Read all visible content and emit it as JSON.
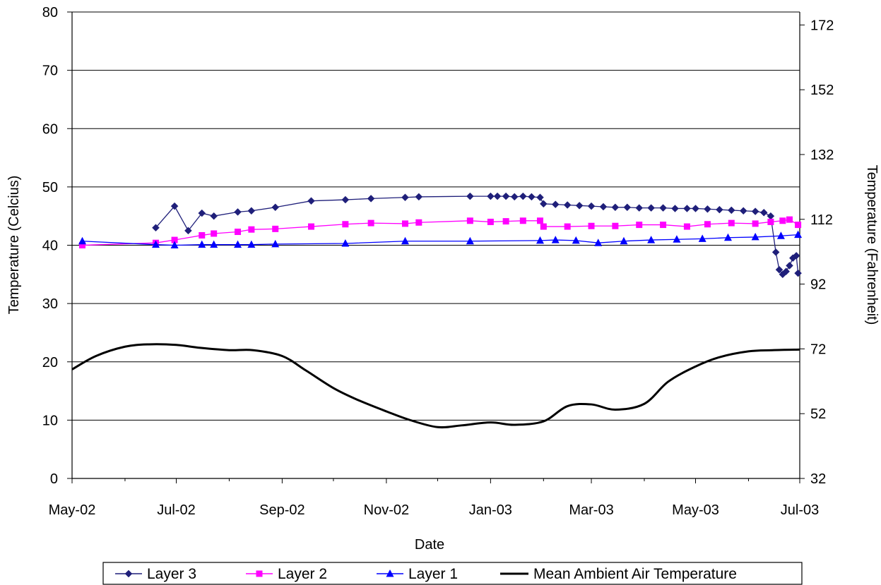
{
  "chart_data": {
    "type": "line",
    "xlabel": "Date",
    "ylabel": "Temperature (Celcius)",
    "y2label": "Temperature (Fahrenheit)",
    "x_range": [
      "2002-05-01",
      "2003-07-01"
    ],
    "x_ticks": [
      {
        "date": "2002-05-01",
        "label": "May-02"
      },
      {
        "date": "2002-07-01",
        "label": "Jul-02"
      },
      {
        "date": "2002-09-01",
        "label": "Sep-02"
      },
      {
        "date": "2002-11-01",
        "label": "Nov-02"
      },
      {
        "date": "2003-01-01",
        "label": "Jan-03"
      },
      {
        "date": "2003-03-01",
        "label": "Mar-03"
      },
      {
        "date": "2003-05-01",
        "label": "May-03"
      },
      {
        "date": "2003-07-01",
        "label": "Jul-03"
      }
    ],
    "ylim": [
      0,
      80
    ],
    "y_ticks": [
      0,
      10,
      20,
      30,
      40,
      50,
      60,
      70,
      80
    ],
    "y2lim": [
      32,
      176
    ],
    "y2_ticks": [
      32,
      52,
      72,
      92,
      112,
      132,
      152,
      172
    ],
    "grid": "horizontal",
    "legend_position": "bottom",
    "series": [
      {
        "name": "Layer 3",
        "color": "#1F1F7A",
        "marker": "diamond",
        "points": [
          [
            "2002-06-19",
            43.0
          ],
          [
            "2002-06-30",
            46.7
          ],
          [
            "2002-07-08",
            42.5
          ],
          [
            "2002-07-16",
            45.5
          ],
          [
            "2002-07-23",
            45.0
          ],
          [
            "2002-08-06",
            45.7
          ],
          [
            "2002-08-14",
            45.9
          ],
          [
            "2002-08-28",
            46.5
          ],
          [
            "2002-09-18",
            47.6
          ],
          [
            "2002-10-08",
            47.8
          ],
          [
            "2002-10-23",
            48.0
          ],
          [
            "2002-11-12",
            48.2
          ],
          [
            "2002-11-20",
            48.3
          ],
          [
            "2002-12-20",
            48.4
          ],
          [
            "2003-01-01",
            48.4
          ],
          [
            "2003-01-05",
            48.4
          ],
          [
            "2003-01-10",
            48.4
          ],
          [
            "2003-01-15",
            48.3
          ],
          [
            "2003-01-20",
            48.4
          ],
          [
            "2003-01-25",
            48.3
          ],
          [
            "2003-01-30",
            48.2
          ],
          [
            "2003-02-01",
            47.1
          ],
          [
            "2003-02-08",
            47.0
          ],
          [
            "2003-02-15",
            46.9
          ],
          [
            "2003-02-22",
            46.8
          ],
          [
            "2003-03-01",
            46.7
          ],
          [
            "2003-03-08",
            46.6
          ],
          [
            "2003-03-15",
            46.5
          ],
          [
            "2003-03-22",
            46.5
          ],
          [
            "2003-03-29",
            46.4
          ],
          [
            "2003-04-05",
            46.4
          ],
          [
            "2003-04-12",
            46.4
          ],
          [
            "2003-04-19",
            46.3
          ],
          [
            "2003-04-26",
            46.3
          ],
          [
            "2003-05-01",
            46.3
          ],
          [
            "2003-05-08",
            46.2
          ],
          [
            "2003-05-15",
            46.1
          ],
          [
            "2003-05-22",
            46.0
          ],
          [
            "2003-05-29",
            45.9
          ],
          [
            "2003-06-05",
            45.8
          ],
          [
            "2003-06-10",
            45.6
          ],
          [
            "2003-06-14",
            45.0
          ],
          [
            "2003-06-17",
            38.8
          ],
          [
            "2003-06-19",
            35.8
          ],
          [
            "2003-06-21",
            35.0
          ],
          [
            "2003-06-23",
            35.5
          ],
          [
            "2003-06-25",
            36.5
          ],
          [
            "2003-06-27",
            37.8
          ],
          [
            "2003-06-29",
            38.2
          ],
          [
            "2003-06-30",
            35.2
          ]
        ]
      },
      {
        "name": "Layer 2",
        "color": "#FF00FF",
        "marker": "square",
        "points": [
          [
            "2002-05-07",
            40.0
          ],
          [
            "2002-06-19",
            40.4
          ],
          [
            "2002-06-30",
            40.9
          ],
          [
            "2002-07-16",
            41.7
          ],
          [
            "2002-07-23",
            42.0
          ],
          [
            "2002-08-06",
            42.3
          ],
          [
            "2002-08-14",
            42.7
          ],
          [
            "2002-08-28",
            42.8
          ],
          [
            "2002-09-18",
            43.2
          ],
          [
            "2002-10-08",
            43.6
          ],
          [
            "2002-10-23",
            43.8
          ],
          [
            "2002-11-12",
            43.7
          ],
          [
            "2002-11-20",
            43.9
          ],
          [
            "2002-12-20",
            44.2
          ],
          [
            "2003-01-01",
            44.0
          ],
          [
            "2003-01-10",
            44.1
          ],
          [
            "2003-01-20",
            44.2
          ],
          [
            "2003-01-30",
            44.2
          ],
          [
            "2003-02-01",
            43.2
          ],
          [
            "2003-02-15",
            43.2
          ],
          [
            "2003-03-01",
            43.3
          ],
          [
            "2003-03-15",
            43.3
          ],
          [
            "2003-03-29",
            43.5
          ],
          [
            "2003-04-12",
            43.5
          ],
          [
            "2003-04-26",
            43.2
          ],
          [
            "2003-05-08",
            43.6
          ],
          [
            "2003-05-22",
            43.8
          ],
          [
            "2003-06-05",
            43.7
          ],
          [
            "2003-06-14",
            44.0
          ],
          [
            "2003-06-21",
            44.2
          ],
          [
            "2003-06-25",
            44.4
          ],
          [
            "2003-06-30",
            43.5
          ]
        ]
      },
      {
        "name": "Layer 1",
        "color": "#0000FF",
        "marker": "triangle",
        "points": [
          [
            "2002-05-07",
            40.7
          ],
          [
            "2002-06-19",
            40.1
          ],
          [
            "2002-06-30",
            40.0
          ],
          [
            "2002-07-16",
            40.1
          ],
          [
            "2002-07-23",
            40.1
          ],
          [
            "2002-08-06",
            40.1
          ],
          [
            "2002-08-14",
            40.1
          ],
          [
            "2002-08-28",
            40.2
          ],
          [
            "2002-10-08",
            40.3
          ],
          [
            "2002-11-12",
            40.7
          ],
          [
            "2002-12-20",
            40.7
          ],
          [
            "2003-01-30",
            40.8
          ],
          [
            "2003-02-08",
            40.9
          ],
          [
            "2003-02-20",
            40.8
          ],
          [
            "2003-03-05",
            40.4
          ],
          [
            "2003-03-20",
            40.7
          ],
          [
            "2003-04-05",
            40.9
          ],
          [
            "2003-04-20",
            41.0
          ],
          [
            "2003-05-05",
            41.1
          ],
          [
            "2003-05-20",
            41.3
          ],
          [
            "2003-06-05",
            41.4
          ],
          [
            "2003-06-20",
            41.6
          ],
          [
            "2003-06-30",
            41.8
          ]
        ]
      },
      {
        "name": "Mean Ambient Air Temperature",
        "color": "#000000",
        "marker": "none",
        "points": [
          [
            "2002-05-01",
            18.7
          ],
          [
            "2002-05-15",
            21.0
          ],
          [
            "2002-06-01",
            22.6
          ],
          [
            "2002-06-15",
            23.0
          ],
          [
            "2002-07-01",
            22.9
          ],
          [
            "2002-07-15",
            22.4
          ],
          [
            "2002-08-01",
            22.0
          ],
          [
            "2002-08-15",
            22.0
          ],
          [
            "2002-09-01",
            21.0
          ],
          [
            "2002-09-15",
            18.5
          ],
          [
            "2002-10-01",
            15.5
          ],
          [
            "2002-10-15",
            13.5
          ],
          [
            "2002-11-01",
            11.5
          ],
          [
            "2002-11-15",
            10.0
          ],
          [
            "2002-12-01",
            8.8
          ],
          [
            "2002-12-15",
            9.1
          ],
          [
            "2003-01-01",
            9.6
          ],
          [
            "2003-01-15",
            9.2
          ],
          [
            "2003-02-01",
            9.8
          ],
          [
            "2003-02-15",
            12.4
          ],
          [
            "2003-03-01",
            12.7
          ],
          [
            "2003-03-15",
            11.8
          ],
          [
            "2003-04-01",
            12.8
          ],
          [
            "2003-04-15",
            16.6
          ],
          [
            "2003-05-01",
            19.2
          ],
          [
            "2003-05-15",
            20.8
          ],
          [
            "2003-06-01",
            21.8
          ],
          [
            "2003-06-15",
            22.0
          ],
          [
            "2003-07-01",
            22.1
          ]
        ]
      }
    ]
  }
}
